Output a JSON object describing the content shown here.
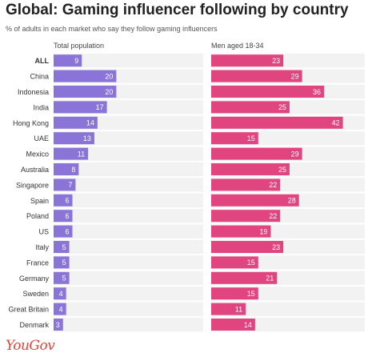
{
  "chart_data": {
    "type": "bar",
    "orientation": "horizontal",
    "title": "Global: Gaming influencer following by country",
    "subtitle": "% of adults in each market who say they follow gaming influencers",
    "categories": [
      "ALL",
      "China",
      "Indonesia",
      "India",
      "Hong Kong",
      "UAE",
      "Mexico",
      "Australia",
      "Singapore",
      "Spain",
      "Poland",
      "US",
      "Italy",
      "France",
      "Germany",
      "Sweden",
      "Great Britain",
      "Denmark"
    ],
    "series": [
      {
        "name": "Total population",
        "color": "#8b74d8",
        "values": [
          9,
          20,
          20,
          17,
          14,
          13,
          11,
          8,
          7,
          6,
          6,
          6,
          5,
          5,
          5,
          4,
          4,
          3
        ]
      },
      {
        "name": "Men aged 18-34",
        "color": "#e0457f",
        "values": [
          23,
          29,
          36,
          25,
          42,
          15,
          29,
          25,
          22,
          28,
          22,
          19,
          23,
          15,
          21,
          15,
          11,
          14
        ]
      }
    ],
    "xlim": [
      0,
      48
    ],
    "grid": false,
    "legend": "panel-titles"
  },
  "brand": {
    "logo": "YouGov",
    "color": "#e0443a"
  }
}
